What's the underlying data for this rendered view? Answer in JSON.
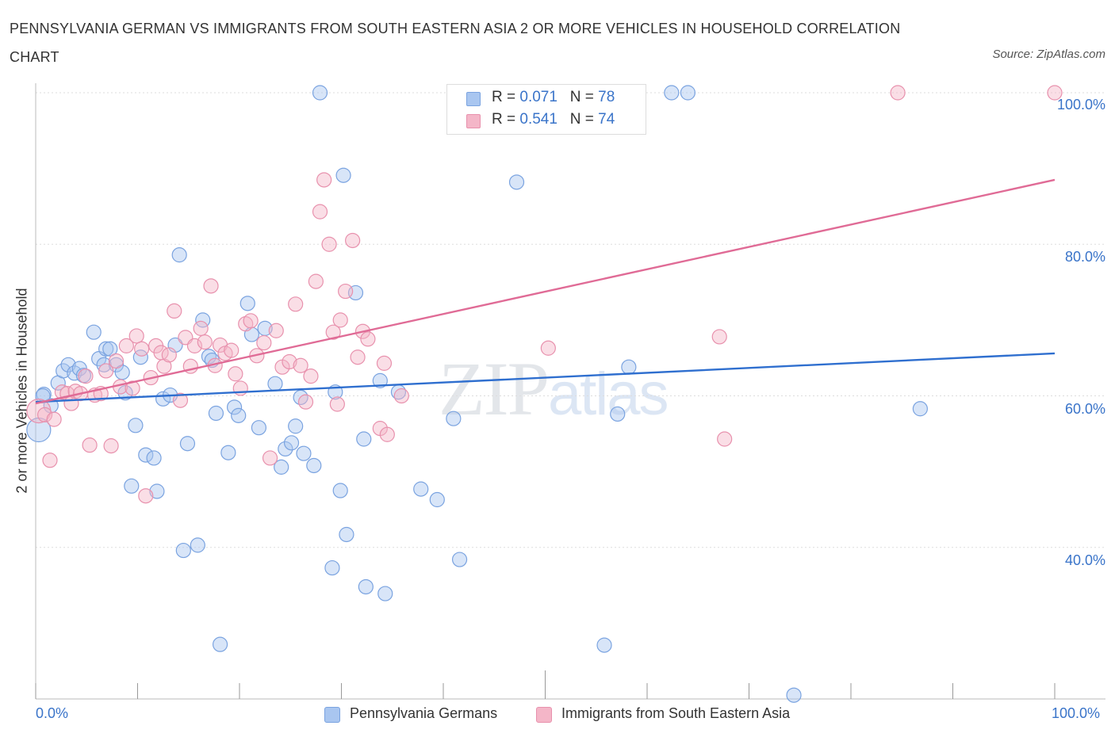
{
  "title": "PENNSYLVANIA GERMAN VS IMMIGRANTS FROM SOUTH EASTERN ASIA 2 OR MORE VEHICLES IN HOUSEHOLD CORRELATION CHART",
  "source": "Source: ZipAtlas.com",
  "watermark": {
    "zip": "ZIP",
    "atlas": "atlas"
  },
  "legend_top": [
    {
      "r_label": "R = ",
      "r_value": "0.071",
      "n_label": "N = ",
      "n_value": "78",
      "color": "#a9c6f0"
    },
    {
      "r_label": "R = ",
      "r_value": "0.541",
      "n_label": "N = ",
      "n_value": "74",
      "color": "#f4b6c8"
    }
  ],
  "legend_bottom": [
    {
      "label": "Pennsylvania Germans",
      "color": "#a9c6f0"
    },
    {
      "label": "Immigrants from South Eastern Asia",
      "color": "#f4b6c8"
    }
  ],
  "colors": {
    "blue_line": "#2f6fcf",
    "pink_line": "#e06b96",
    "blue_fill": "#a9c6f0",
    "pink_fill": "#f4b6c8",
    "blue_stroke": "#7aa3e0",
    "pink_stroke": "#e891ad",
    "grid": "#dddddd",
    "tick_text": "#3a74c9"
  },
  "chart_data": {
    "type": "scatter",
    "title": "PENNSYLVANIA GERMAN VS IMMIGRANTS FROM SOUTH EASTERN ASIA 2 OR MORE VEHICLES IN HOUSEHOLD CORRELATION CHART",
    "xlabel": "",
    "ylabel": "2 or more Vehicles in Household",
    "xlim": [
      0,
      100
    ],
    "ylim": [
      20,
      100
    ],
    "x_tick_labels": [
      "0.0%",
      "100.0%"
    ],
    "y_tick_labels": [
      "100.0%",
      "80.0%",
      "60.0%",
      "40.0%"
    ],
    "y_ticks": [
      100,
      80,
      60,
      40
    ],
    "grid": true,
    "legend_position": "top-center",
    "series": [
      {
        "name": "Pennsylvania Germans",
        "R": 0.071,
        "N": 78,
        "trend": {
          "x": [
            0,
            100
          ],
          "y": [
            59.2,
            65.6
          ]
        },
        "points": [
          [
            0.3,
            55.5
          ],
          [
            0.8,
            60.2
          ],
          [
            1.5,
            58.7
          ],
          [
            2.2,
            61.7
          ],
          [
            2.7,
            63.3
          ],
          [
            3.2,
            64.1
          ],
          [
            3.8,
            63.0
          ],
          [
            4.3,
            63.6
          ],
          [
            4.7,
            62.7
          ],
          [
            5.7,
            68.4
          ],
          [
            6.2,
            64.9
          ],
          [
            6.7,
            64.1
          ],
          [
            6.9,
            66.2
          ],
          [
            7.3,
            66.2
          ],
          [
            7.9,
            64.1
          ],
          [
            8.5,
            63.1
          ],
          [
            8.8,
            60.4
          ],
          [
            9.4,
            48.1
          ],
          [
            9.8,
            56.1
          ],
          [
            10.3,
            65.1
          ],
          [
            10.8,
            52.2
          ],
          [
            11.6,
            51.8
          ],
          [
            11.9,
            47.4
          ],
          [
            12.5,
            59.6
          ],
          [
            13.2,
            60.1
          ],
          [
            13.7,
            66.7
          ],
          [
            14.1,
            78.6
          ],
          [
            14.5,
            39.6
          ],
          [
            14.9,
            53.7
          ],
          [
            15.9,
            40.3
          ],
          [
            16.4,
            70.0
          ],
          [
            17.0,
            65.2
          ],
          [
            17.3,
            64.7
          ],
          [
            17.7,
            57.7
          ],
          [
            18.1,
            27.2
          ],
          [
            18.9,
            52.5
          ],
          [
            19.5,
            58.5
          ],
          [
            19.9,
            57.4
          ],
          [
            20.8,
            72.2
          ],
          [
            21.2,
            68.1
          ],
          [
            21.9,
            55.8
          ],
          [
            22.5,
            68.9
          ],
          [
            23.5,
            61.6
          ],
          [
            24.1,
            50.6
          ],
          [
            24.5,
            53.0
          ],
          [
            25.1,
            53.8
          ],
          [
            25.5,
            56.0
          ],
          [
            26.0,
            59.8
          ],
          [
            26.3,
            52.4
          ],
          [
            27.3,
            50.8
          ],
          [
            27.9,
            100.0
          ],
          [
            29.1,
            37.3
          ],
          [
            29.4,
            60.5
          ],
          [
            29.9,
            47.5
          ],
          [
            30.2,
            89.1
          ],
          [
            30.5,
            41.7
          ],
          [
            31.4,
            73.6
          ],
          [
            32.2,
            54.3
          ],
          [
            32.4,
            34.8
          ],
          [
            33.8,
            62.0
          ],
          [
            34.3,
            33.9
          ],
          [
            35.6,
            60.5
          ],
          [
            37.8,
            47.7
          ],
          [
            39.4,
            46.3
          ],
          [
            41.0,
            57.0
          ],
          [
            41.6,
            38.4
          ],
          [
            43.5,
            100.0
          ],
          [
            47.2,
            88.2
          ],
          [
            48.3,
            100.0
          ],
          [
            54.2,
            100.0
          ],
          [
            55.8,
            27.1
          ],
          [
            57.1,
            57.6
          ],
          [
            58.2,
            63.8
          ],
          [
            62.4,
            100.0
          ],
          [
            64.0,
            100.0
          ],
          [
            86.8,
            58.3
          ],
          [
            74.4,
            20.5
          ],
          [
            0.7,
            60.0
          ]
        ]
      },
      {
        "name": "Immigrants from South Eastern Asia",
        "R": 0.541,
        "N": 74,
        "trend": {
          "x": [
            0,
            100
          ],
          "y": [
            59.0,
            88.5
          ]
        },
        "points": [
          [
            0.3,
            58.0
          ],
          [
            0.9,
            57.5
          ],
          [
            1.4,
            51.5
          ],
          [
            1.8,
            56.9
          ],
          [
            2.6,
            60.5
          ],
          [
            3.1,
            60.3
          ],
          [
            3.5,
            59.0
          ],
          [
            3.9,
            60.6
          ],
          [
            4.4,
            60.3
          ],
          [
            4.9,
            62.6
          ],
          [
            5.3,
            53.5
          ],
          [
            5.8,
            60.1
          ],
          [
            6.4,
            60.3
          ],
          [
            6.9,
            63.3
          ],
          [
            7.4,
            53.4
          ],
          [
            7.9,
            64.6
          ],
          [
            8.3,
            61.2
          ],
          [
            8.9,
            66.6
          ],
          [
            9.5,
            61.0
          ],
          [
            9.9,
            67.9
          ],
          [
            10.4,
            66.2
          ],
          [
            10.8,
            46.8
          ],
          [
            11.3,
            62.4
          ],
          [
            11.8,
            66.6
          ],
          [
            12.3,
            65.7
          ],
          [
            12.6,
            63.9
          ],
          [
            13.1,
            65.4
          ],
          [
            13.6,
            71.2
          ],
          [
            14.2,
            59.4
          ],
          [
            14.7,
            67.7
          ],
          [
            15.2,
            63.9
          ],
          [
            15.6,
            66.6
          ],
          [
            16.2,
            68.9
          ],
          [
            16.6,
            67.1
          ],
          [
            17.2,
            74.5
          ],
          [
            17.6,
            64.0
          ],
          [
            18.1,
            66.7
          ],
          [
            18.6,
            65.6
          ],
          [
            19.2,
            66.0
          ],
          [
            19.6,
            62.9
          ],
          [
            20.1,
            61.0
          ],
          [
            20.6,
            69.5
          ],
          [
            21.1,
            69.9
          ],
          [
            21.7,
            65.3
          ],
          [
            22.4,
            67.0
          ],
          [
            23.0,
            51.8
          ],
          [
            23.6,
            68.6
          ],
          [
            24.2,
            63.8
          ],
          [
            24.9,
            64.5
          ],
          [
            25.5,
            72.1
          ],
          [
            26.0,
            64.0
          ],
          [
            26.5,
            59.2
          ],
          [
            27.0,
            62.6
          ],
          [
            27.5,
            75.1
          ],
          [
            27.9,
            84.3
          ],
          [
            28.3,
            88.5
          ],
          [
            28.8,
            80.0
          ],
          [
            29.2,
            68.4
          ],
          [
            29.6,
            58.9
          ],
          [
            29.9,
            70.0
          ],
          [
            30.4,
            73.8
          ],
          [
            31.1,
            80.5
          ],
          [
            31.6,
            65.1
          ],
          [
            32.1,
            68.5
          ],
          [
            32.6,
            67.5
          ],
          [
            33.8,
            55.7
          ],
          [
            34.5,
            54.9
          ],
          [
            34.2,
            64.3
          ],
          [
            35.9,
            60.0
          ],
          [
            50.3,
            66.3
          ],
          [
            67.1,
            67.8
          ],
          [
            67.6,
            54.3
          ],
          [
            84.6,
            100.0
          ],
          [
            100.0,
            100.0
          ]
        ]
      }
    ]
  }
}
